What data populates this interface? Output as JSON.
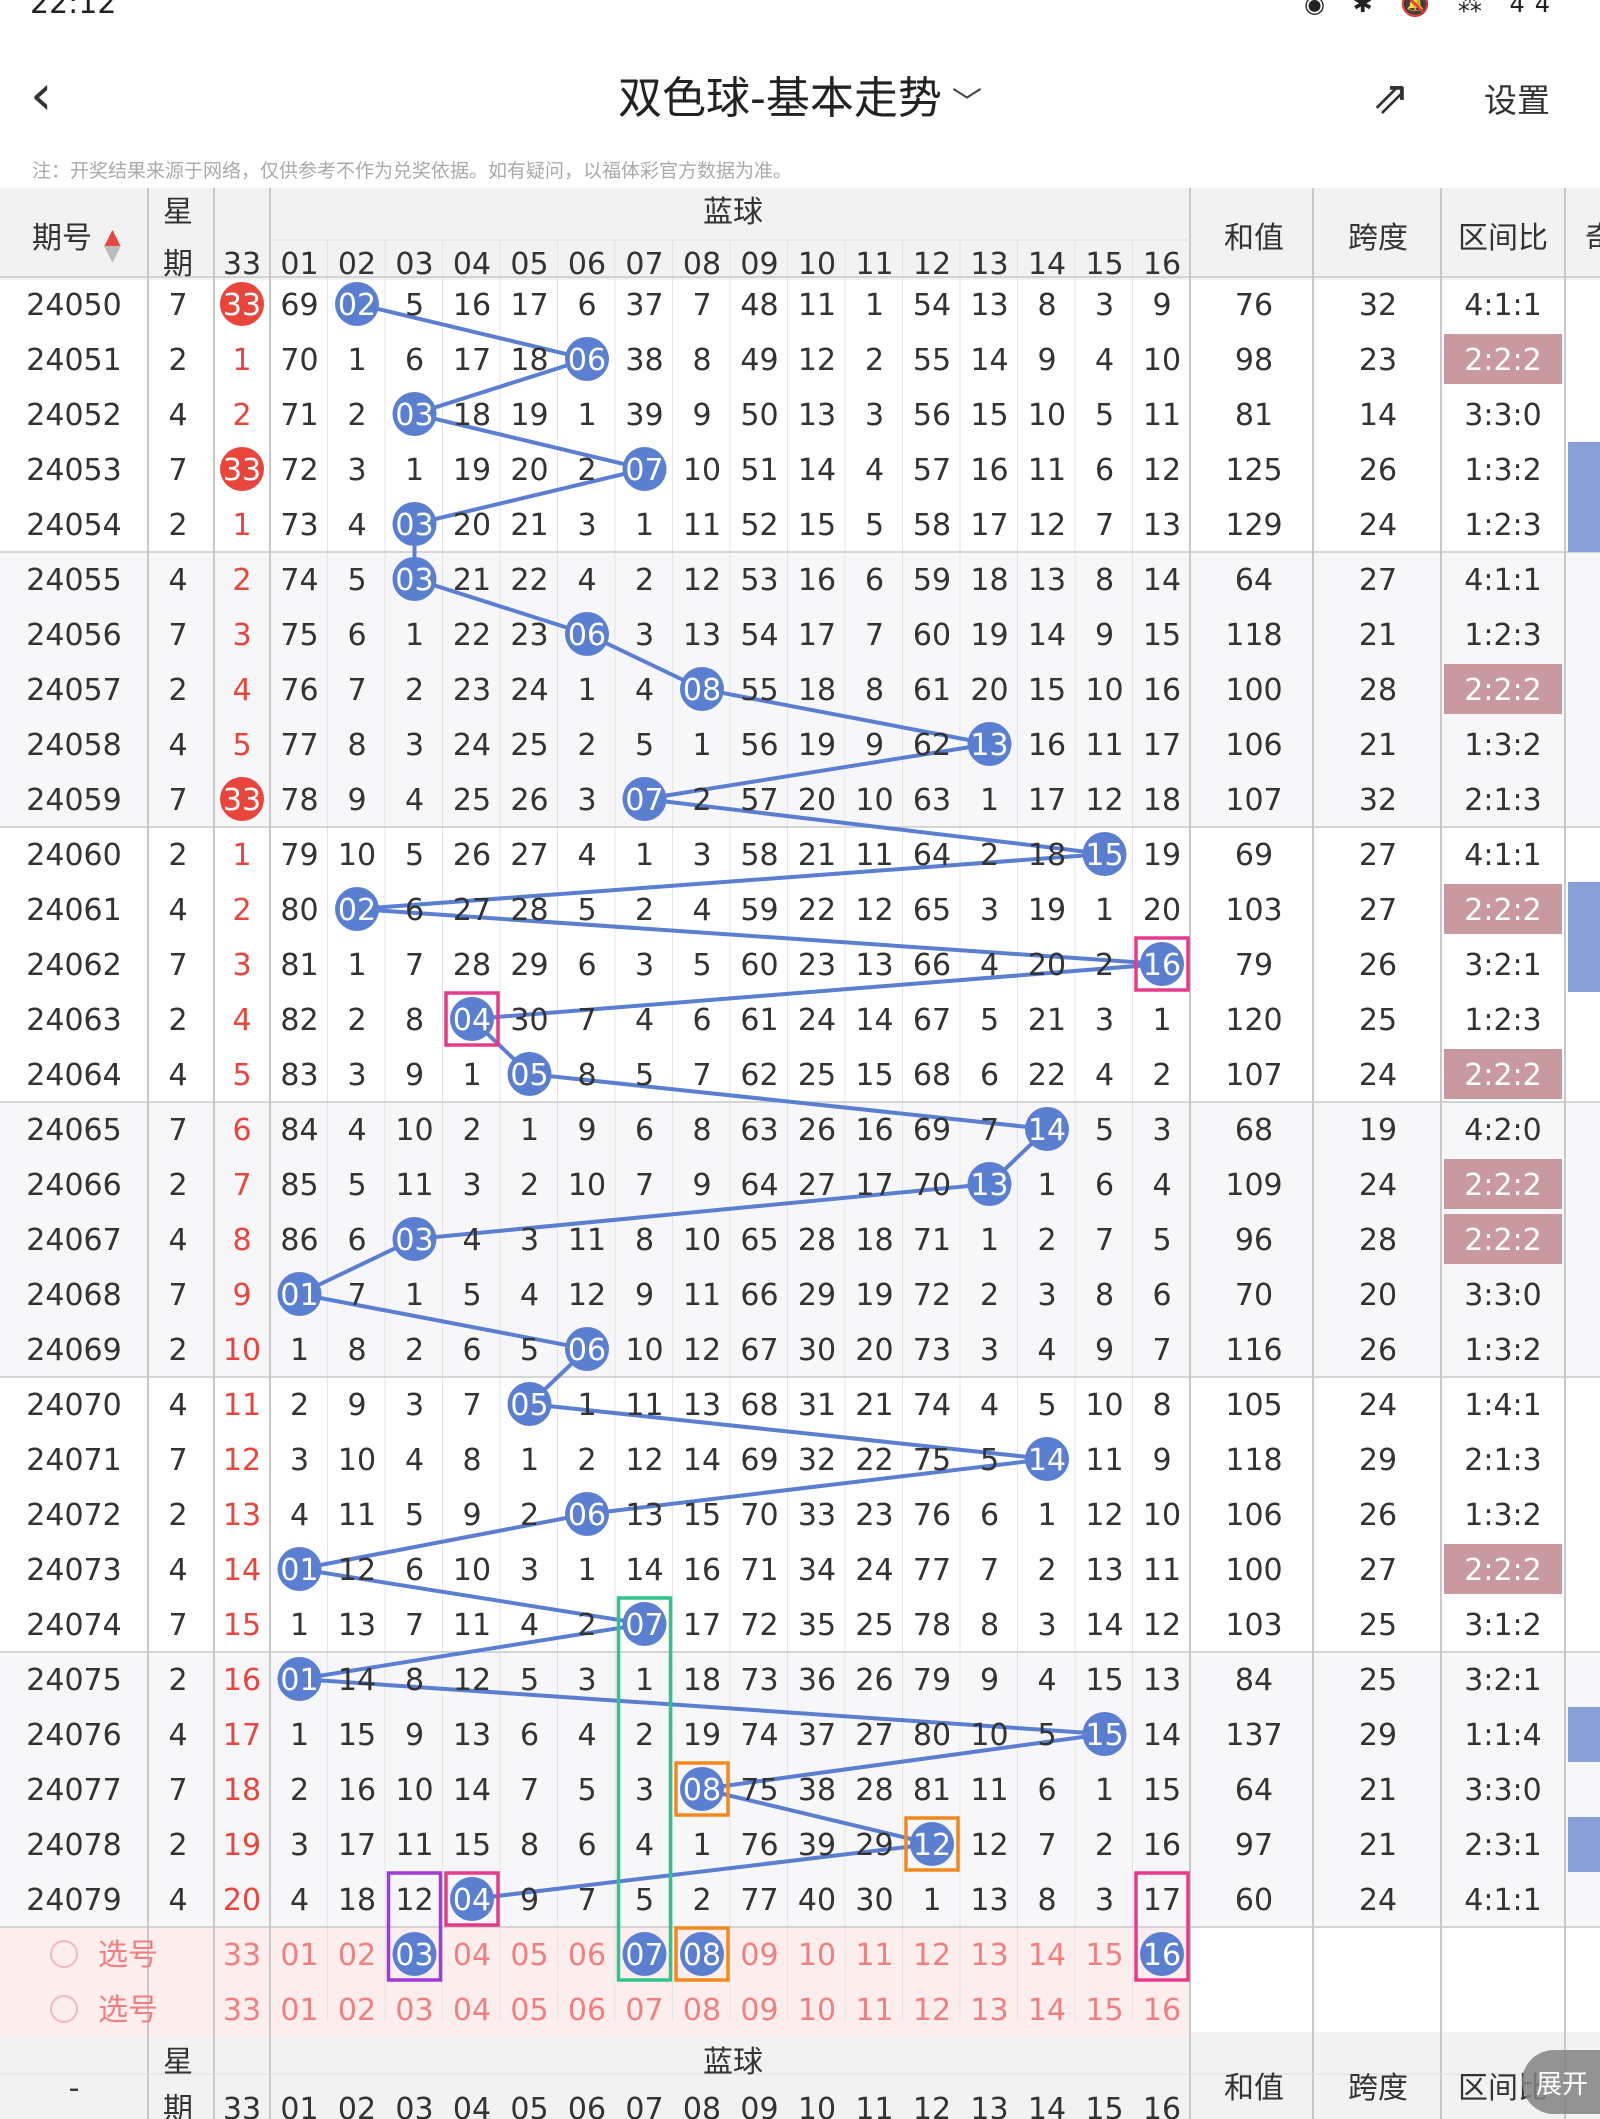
{
  "status_bar": {
    "time": "22:12",
    "battery": "44"
  },
  "nav": {
    "title": "双色球-基本走势",
    "settings": "设置",
    "back_icon": "chevron-left-icon",
    "share_icon": "share-icon",
    "dropdown_icon": "chevron-down-icon"
  },
  "notice": "注：开奖结果来源于网络，仅供参考不作为兑奖依据。如有疑问，以福体彩官方数据为准。",
  "header": {
    "issue": "期号",
    "weekday_top": "星",
    "weekday_bottom": "期",
    "blue_group": "蓝球",
    "first_col": "33",
    "blue_cols": [
      "01",
      "02",
      "03",
      "04",
      "05",
      "06",
      "07",
      "08",
      "09",
      "10",
      "11",
      "12",
      "13",
      "14",
      "15",
      "16"
    ],
    "sum": "和值",
    "span": "跨度",
    "ratio": "区间比",
    "extra": "奇"
  },
  "rows": [
    {
      "issue": "24050",
      "week": "7",
      "c33": "33",
      "c33hit": true,
      "blue": [
        "69",
        "02",
        "5",
        "16",
        "17",
        "6",
        "37",
        "7",
        "48",
        "11",
        "1",
        "54",
        "13",
        "8",
        "3",
        "9"
      ],
      "hit": 2,
      "sum": "76",
      "span": "32",
      "ratio": "4:1:1",
      "ratio_hl": false,
      "edge": false
    },
    {
      "issue": "24051",
      "week": "2",
      "c33": "1",
      "c33hit": false,
      "blue": [
        "70",
        "1",
        "6",
        "17",
        "18",
        "06",
        "38",
        "8",
        "49",
        "12",
        "2",
        "55",
        "14",
        "9",
        "4",
        "10"
      ],
      "hit": 6,
      "sum": "98",
      "span": "23",
      "ratio": "2:2:2",
      "ratio_hl": true,
      "edge": false
    },
    {
      "issue": "24052",
      "week": "4",
      "c33": "2",
      "c33hit": false,
      "blue": [
        "71",
        "2",
        "03",
        "18",
        "19",
        "1",
        "39",
        "9",
        "50",
        "13",
        "3",
        "56",
        "15",
        "10",
        "5",
        "11"
      ],
      "hit": 3,
      "sum": "81",
      "span": "14",
      "ratio": "3:3:0",
      "ratio_hl": false,
      "edge": false
    },
    {
      "issue": "24053",
      "week": "7",
      "c33": "33",
      "c33hit": true,
      "blue": [
        "72",
        "3",
        "1",
        "19",
        "20",
        "2",
        "07",
        "10",
        "51",
        "14",
        "4",
        "57",
        "16",
        "11",
        "6",
        "12"
      ],
      "hit": 7,
      "sum": "125",
      "span": "26",
      "ratio": "1:3:2",
      "ratio_hl": false,
      "edge": true
    },
    {
      "issue": "24054",
      "week": "2",
      "c33": "1",
      "c33hit": false,
      "blue": [
        "73",
        "4",
        "03",
        "20",
        "21",
        "3",
        "1",
        "11",
        "52",
        "15",
        "5",
        "58",
        "17",
        "12",
        "7",
        "13"
      ],
      "hit": 3,
      "sum": "129",
      "span": "24",
      "ratio": "1:2:3",
      "ratio_hl": false,
      "edge": true
    },
    {
      "issue": "24055",
      "week": "4",
      "c33": "2",
      "c33hit": false,
      "blue": [
        "74",
        "5",
        "03",
        "21",
        "22",
        "4",
        "2",
        "12",
        "53",
        "16",
        "6",
        "59",
        "18",
        "13",
        "8",
        "14"
      ],
      "hit": 3,
      "sum": "64",
      "span": "27",
      "ratio": "4:1:1",
      "ratio_hl": false,
      "edge": false
    },
    {
      "issue": "24056",
      "week": "7",
      "c33": "3",
      "c33hit": false,
      "blue": [
        "75",
        "6",
        "1",
        "22",
        "23",
        "06",
        "3",
        "13",
        "54",
        "17",
        "7",
        "60",
        "19",
        "14",
        "9",
        "15"
      ],
      "hit": 6,
      "sum": "118",
      "span": "21",
      "ratio": "1:2:3",
      "ratio_hl": false,
      "edge": false
    },
    {
      "issue": "24057",
      "week": "2",
      "c33": "4",
      "c33hit": false,
      "blue": [
        "76",
        "7",
        "2",
        "23",
        "24",
        "1",
        "4",
        "08",
        "55",
        "18",
        "8",
        "61",
        "20",
        "15",
        "10",
        "16"
      ],
      "hit": 8,
      "sum": "100",
      "span": "28",
      "ratio": "2:2:2",
      "ratio_hl": true,
      "edge": false
    },
    {
      "issue": "24058",
      "week": "4",
      "c33": "5",
      "c33hit": false,
      "blue": [
        "77",
        "8",
        "3",
        "24",
        "25",
        "2",
        "5",
        "1",
        "56",
        "19",
        "9",
        "62",
        "13",
        "16",
        "11",
        "17"
      ],
      "hit": 13,
      "sum": "106",
      "span": "21",
      "ratio": "1:3:2",
      "ratio_hl": false,
      "edge": false
    },
    {
      "issue": "24059",
      "week": "7",
      "c33": "33",
      "c33hit": true,
      "blue": [
        "78",
        "9",
        "4",
        "25",
        "26",
        "3",
        "07",
        "2",
        "57",
        "20",
        "10",
        "63",
        "1",
        "17",
        "12",
        "18"
      ],
      "hit": 7,
      "sum": "107",
      "span": "32",
      "ratio": "2:1:3",
      "ratio_hl": false,
      "edge": false
    },
    {
      "issue": "24060",
      "week": "2",
      "c33": "1",
      "c33hit": false,
      "blue": [
        "79",
        "10",
        "5",
        "26",
        "27",
        "4",
        "1",
        "3",
        "58",
        "21",
        "11",
        "64",
        "2",
        "18",
        "15",
        "19"
      ],
      "hit": 15,
      "sum": "69",
      "span": "27",
      "ratio": "4:1:1",
      "ratio_hl": false,
      "edge": false
    },
    {
      "issue": "24061",
      "week": "4",
      "c33": "2",
      "c33hit": false,
      "blue": [
        "80",
        "02",
        "6",
        "27",
        "28",
        "5",
        "2",
        "4",
        "59",
        "22",
        "12",
        "65",
        "3",
        "19",
        "1",
        "20"
      ],
      "hit": 2,
      "sum": "103",
      "span": "27",
      "ratio": "2:2:2",
      "ratio_hl": true,
      "edge": true
    },
    {
      "issue": "24062",
      "week": "7",
      "c33": "3",
      "c33hit": false,
      "blue": [
        "81",
        "1",
        "7",
        "28",
        "29",
        "6",
        "3",
        "5",
        "60",
        "23",
        "13",
        "66",
        "4",
        "20",
        "2",
        "16"
      ],
      "hit": 16,
      "sum": "79",
      "span": "26",
      "ratio": "3:2:1",
      "ratio_hl": false,
      "edge": true
    },
    {
      "issue": "24063",
      "week": "2",
      "c33": "4",
      "c33hit": false,
      "blue": [
        "82",
        "2",
        "8",
        "04",
        "30",
        "7",
        "4",
        "6",
        "61",
        "24",
        "14",
        "67",
        "5",
        "21",
        "3",
        "1"
      ],
      "hit": 4,
      "sum": "120",
      "span": "25",
      "ratio": "1:2:3",
      "ratio_hl": false,
      "edge": false
    },
    {
      "issue": "24064",
      "week": "4",
      "c33": "5",
      "c33hit": false,
      "blue": [
        "83",
        "3",
        "9",
        "1",
        "05",
        "8",
        "5",
        "7",
        "62",
        "25",
        "15",
        "68",
        "6",
        "22",
        "4",
        "2"
      ],
      "hit": 5,
      "sum": "107",
      "span": "24",
      "ratio": "2:2:2",
      "ratio_hl": true,
      "edge": false
    },
    {
      "issue": "24065",
      "week": "7",
      "c33": "6",
      "c33hit": false,
      "blue": [
        "84",
        "4",
        "10",
        "2",
        "1",
        "9",
        "6",
        "8",
        "63",
        "26",
        "16",
        "69",
        "7",
        "14",
        "5",
        "3"
      ],
      "hit": 14,
      "sum": "68",
      "span": "19",
      "ratio": "4:2:0",
      "ratio_hl": false,
      "edge": false
    },
    {
      "issue": "24066",
      "week": "2",
      "c33": "7",
      "c33hit": false,
      "blue": [
        "85",
        "5",
        "11",
        "3",
        "2",
        "10",
        "7",
        "9",
        "64",
        "27",
        "17",
        "70",
        "13",
        "1",
        "6",
        "4"
      ],
      "hit": 13,
      "sum": "109",
      "span": "24",
      "ratio": "2:2:2",
      "ratio_hl": true,
      "edge": false
    },
    {
      "issue": "24067",
      "week": "4",
      "c33": "8",
      "c33hit": false,
      "blue": [
        "86",
        "6",
        "03",
        "4",
        "3",
        "11",
        "8",
        "10",
        "65",
        "28",
        "18",
        "71",
        "1",
        "2",
        "7",
        "5"
      ],
      "hit": 3,
      "sum": "96",
      "span": "28",
      "ratio": "2:2:2",
      "ratio_hl": true,
      "edge": false
    },
    {
      "issue": "24068",
      "week": "7",
      "c33": "9",
      "c33hit": false,
      "blue": [
        "01",
        "7",
        "1",
        "5",
        "4",
        "12",
        "9",
        "11",
        "66",
        "29",
        "19",
        "72",
        "2",
        "3",
        "8",
        "6"
      ],
      "hit": 1,
      "sum": "70",
      "span": "20",
      "ratio": "3:3:0",
      "ratio_hl": false,
      "edge": false
    },
    {
      "issue": "24069",
      "week": "2",
      "c33": "10",
      "c33hit": false,
      "blue": [
        "1",
        "8",
        "2",
        "6",
        "5",
        "06",
        "10",
        "12",
        "67",
        "30",
        "20",
        "73",
        "3",
        "4",
        "9",
        "7"
      ],
      "hit": 6,
      "sum": "116",
      "span": "26",
      "ratio": "1:3:2",
      "ratio_hl": false,
      "edge": false
    },
    {
      "issue": "24070",
      "week": "4",
      "c33": "11",
      "c33hit": false,
      "blue": [
        "2",
        "9",
        "3",
        "7",
        "05",
        "1",
        "11",
        "13",
        "68",
        "31",
        "21",
        "74",
        "4",
        "5",
        "10",
        "8"
      ],
      "hit": 5,
      "sum": "105",
      "span": "24",
      "ratio": "1:4:1",
      "ratio_hl": false,
      "edge": false
    },
    {
      "issue": "24071",
      "week": "7",
      "c33": "12",
      "c33hit": false,
      "blue": [
        "3",
        "10",
        "4",
        "8",
        "1",
        "2",
        "12",
        "14",
        "69",
        "32",
        "22",
        "75",
        "5",
        "14",
        "11",
        "9"
      ],
      "hit": 14,
      "sum": "118",
      "span": "29",
      "ratio": "2:1:3",
      "ratio_hl": false,
      "edge": false
    },
    {
      "issue": "24072",
      "week": "2",
      "c33": "13",
      "c33hit": false,
      "blue": [
        "4",
        "11",
        "5",
        "9",
        "2",
        "06",
        "13",
        "15",
        "70",
        "33",
        "23",
        "76",
        "6",
        "1",
        "12",
        "10"
      ],
      "hit": 6,
      "sum": "106",
      "span": "26",
      "ratio": "1:3:2",
      "ratio_hl": false,
      "edge": false
    },
    {
      "issue": "24073",
      "week": "4",
      "c33": "14",
      "c33hit": false,
      "blue": [
        "01",
        "12",
        "6",
        "10",
        "3",
        "1",
        "14",
        "16",
        "71",
        "34",
        "24",
        "77",
        "7",
        "2",
        "13",
        "11"
      ],
      "hit": 1,
      "sum": "100",
      "span": "27",
      "ratio": "2:2:2",
      "ratio_hl": true,
      "edge": false
    },
    {
      "issue": "24074",
      "week": "7",
      "c33": "15",
      "c33hit": false,
      "blue": [
        "1",
        "13",
        "7",
        "11",
        "4",
        "2",
        "07",
        "17",
        "72",
        "35",
        "25",
        "78",
        "8",
        "3",
        "14",
        "12"
      ],
      "hit": 7,
      "sum": "103",
      "span": "25",
      "ratio": "3:1:2",
      "ratio_hl": false,
      "edge": false
    },
    {
      "issue": "24075",
      "week": "2",
      "c33": "16",
      "c33hit": false,
      "blue": [
        "01",
        "14",
        "8",
        "12",
        "5",
        "3",
        "1",
        "18",
        "73",
        "36",
        "26",
        "79",
        "9",
        "4",
        "15",
        "13"
      ],
      "hit": 1,
      "sum": "84",
      "span": "25",
      "ratio": "3:2:1",
      "ratio_hl": false,
      "edge": false
    },
    {
      "issue": "24076",
      "week": "4",
      "c33": "17",
      "c33hit": false,
      "blue": [
        "1",
        "15",
        "9",
        "13",
        "6",
        "4",
        "2",
        "19",
        "74",
        "37",
        "27",
        "80",
        "10",
        "5",
        "15",
        "14"
      ],
      "hit": 15,
      "sum": "137",
      "span": "29",
      "ratio": "1:1:4",
      "ratio_hl": false,
      "edge": true
    },
    {
      "issue": "24077",
      "week": "7",
      "c33": "18",
      "c33hit": false,
      "blue": [
        "2",
        "16",
        "10",
        "14",
        "7",
        "5",
        "3",
        "08",
        "75",
        "38",
        "28",
        "81",
        "11",
        "6",
        "1",
        "15"
      ],
      "hit": 8,
      "sum": "64",
      "span": "21",
      "ratio": "3:3:0",
      "ratio_hl": false,
      "edge": false
    },
    {
      "issue": "24078",
      "week": "2",
      "c33": "19",
      "c33hit": false,
      "blue": [
        "3",
        "17",
        "11",
        "15",
        "8",
        "6",
        "4",
        "1",
        "76",
        "39",
        "29",
        "12",
        "12",
        "7",
        "2",
        "16"
      ],
      "hit": 12,
      "sum": "97",
      "span": "21",
      "ratio": "2:3:1",
      "ratio_hl": false,
      "edge": true
    },
    {
      "issue": "24079",
      "week": "4",
      "c33": "20",
      "c33hit": false,
      "blue": [
        "4",
        "18",
        "12",
        "04",
        "9",
        "7",
        "5",
        "2",
        "77",
        "40",
        "30",
        "1",
        "13",
        "8",
        "3",
        "17"
      ],
      "hit": 4,
      "sum": "60",
      "span": "24",
      "ratio": "4:1:1",
      "ratio_hl": false,
      "edge": false
    }
  ],
  "select_rows": [
    {
      "label": "选号",
      "c33": "33",
      "nums": [
        "01",
        "02",
        "03",
        "04",
        "05",
        "06",
        "07",
        "08",
        "09",
        "10",
        "11",
        "12",
        "13",
        "14",
        "15",
        "16"
      ],
      "picked": [
        3,
        7,
        8,
        16
      ]
    },
    {
      "label": "选号",
      "c33": "33",
      "nums": [
        "01",
        "02",
        "03",
        "04",
        "05",
        "06",
        "07",
        "08",
        "09",
        "10",
        "11",
        "12",
        "13",
        "14",
        "15",
        "16"
      ],
      "picked": []
    }
  ],
  "footer_header": {
    "issue": "-",
    "weekday_top": "星",
    "weekday_bottom": "期",
    "blue_group": "蓝球",
    "sum": "和值",
    "span": "跨度",
    "ratio": "区间比"
  },
  "expand_button": "展开",
  "colors": {
    "blue_ball": "#5b7fd0",
    "red_ball": "#e8453c",
    "red_text": "#e8453c",
    "ratio_highlight": "#c89a9f",
    "edge_bar": "#8a9fd8",
    "header_bg": "#f2f2f2",
    "select_bg": "#fdeeee"
  }
}
